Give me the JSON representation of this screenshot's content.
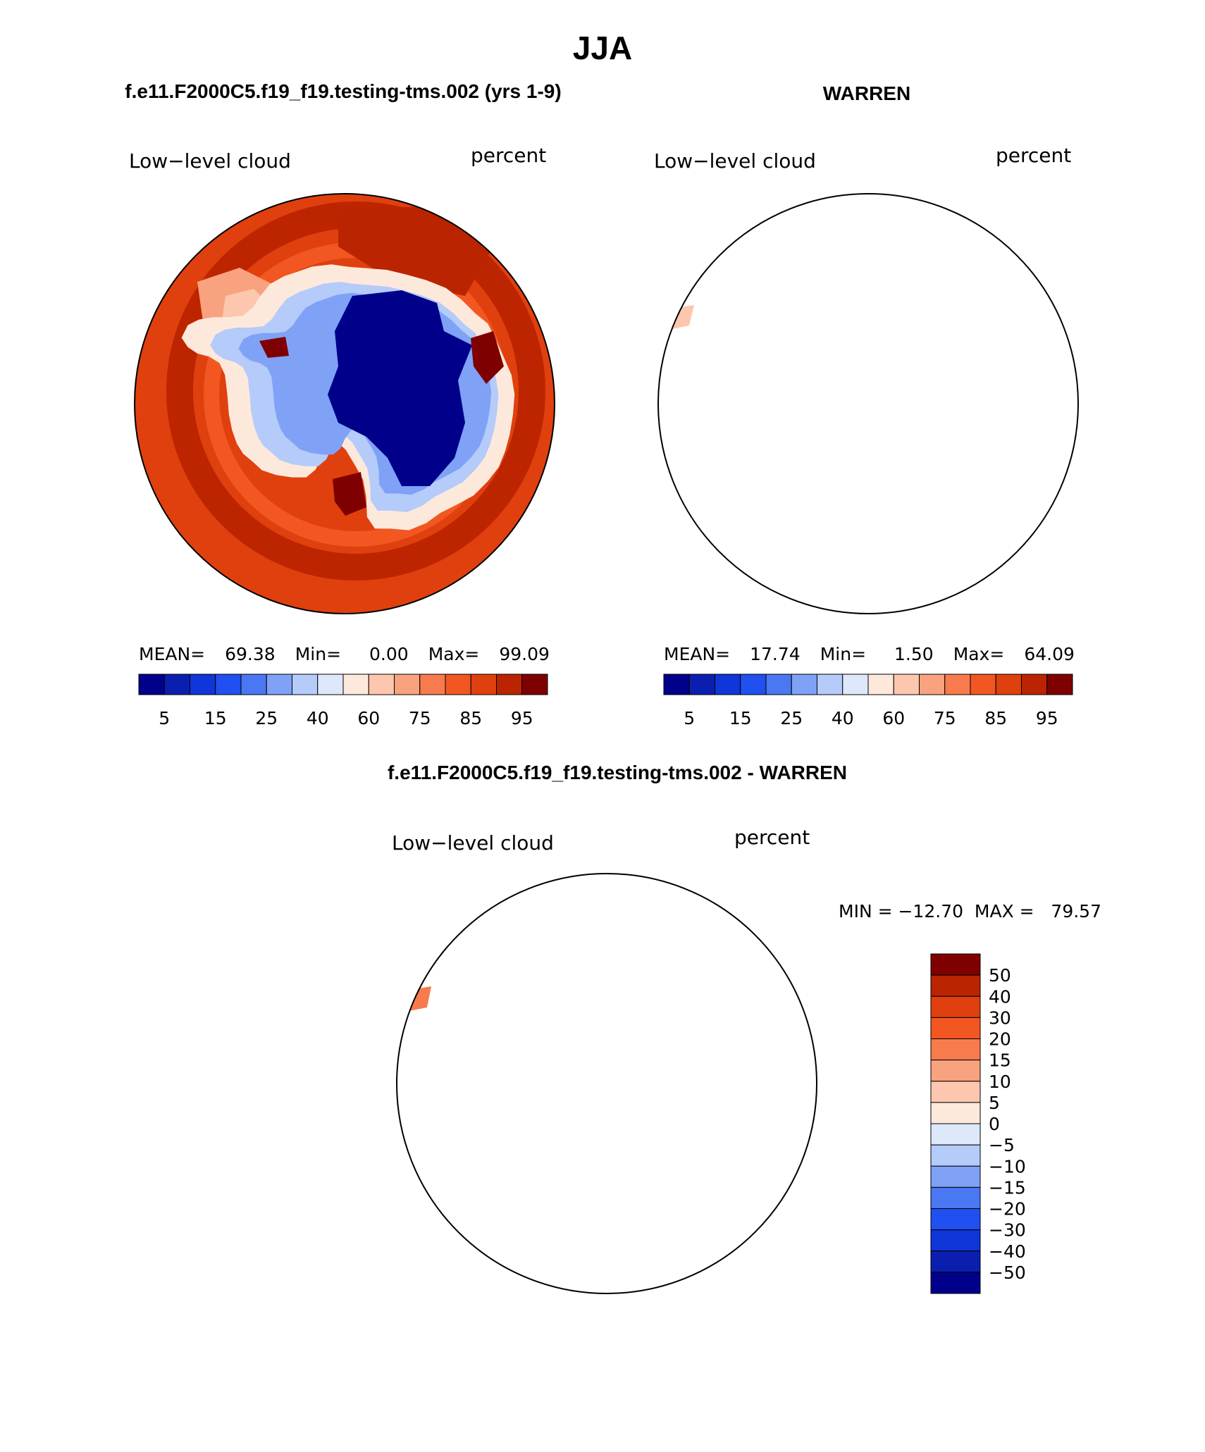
{
  "page": {
    "title": "JJA",
    "left_title": "f.e11.F2000C5.f19_f19.testing-tms.002 (yrs 1-9)",
    "right_title": "WARREN",
    "diff_title": "f.e11.F2000C5.f19_f19.testing-tms.002 - WARREN"
  },
  "panels": [
    {
      "id": "model",
      "variable": "Low−level cloud",
      "units": "percent",
      "stats": {
        "mean_label": "MEAN=",
        "mean": "69.38",
        "min_label": "Min=",
        "min": "0.00",
        "max_label": "Max=",
        "max": "99.09"
      }
    },
    {
      "id": "obs",
      "variable": "Low−level cloud",
      "units": "percent",
      "stats": {
        "mean_label": "MEAN=",
        "mean": "17.74",
        "min_label": "Min=",
        "min": "1.50",
        "max_label": "Max=",
        "max": "64.09"
      }
    },
    {
      "id": "diff",
      "variable": "Low−level cloud",
      "units": "percent",
      "stats_text": "MIN = −12.70  MAX =   79.57"
    }
  ],
  "colorbar_main": {
    "colors": [
      "#00008b",
      "#0a1fb0",
      "#1035d8",
      "#2050f0",
      "#4a77f2",
      "#7fa2f6",
      "#b5cbf9",
      "#dde9fb",
      "#fde9dc",
      "#fcc7ae",
      "#f9a27f",
      "#f77b4c",
      "#f25722",
      "#e0400e",
      "#bb2400",
      "#7f0000"
    ],
    "labels": [
      "5",
      "15",
      "25",
      "40",
      "60",
      "75",
      "85",
      "95"
    ]
  },
  "colorbar_diff": {
    "colors": [
      "#7f0000",
      "#bb2400",
      "#e0400e",
      "#f25722",
      "#f77b4c",
      "#f9a27f",
      "#fcc7ae",
      "#fde9dc",
      "#dde9fb",
      "#b5cbf9",
      "#7fa2f6",
      "#4a77f2",
      "#2050f0",
      "#1035d8",
      "#0a1fb0",
      "#00008b"
    ],
    "labels": [
      "50",
      "40",
      "30",
      "20",
      "15",
      "10",
      "5",
      "0",
      "−5",
      "−10",
      "−15",
      "−20",
      "−30",
      "−40",
      "−50"
    ]
  },
  "map_fill": {
    "model": {
      "ocean_base": "#e0400e",
      "ring_dark": "#bb2400",
      "ring_mid": "#f25722",
      "continent_coast": "#fde9dc",
      "continent_mid": "#b5cbf9",
      "continent_inner": "#7fa2f6",
      "plateau": "#00008b",
      "patch_dark": "#7f0000"
    },
    "obs_patch": "#fcc7ae",
    "diff_patch": "#f77b4c"
  }
}
